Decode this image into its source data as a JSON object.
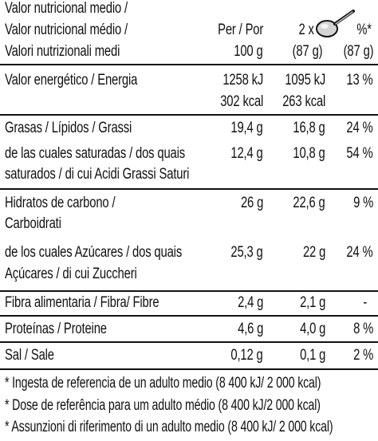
{
  "header": {
    "title_lines": [
      "Valor nutricional medio /",
      "Valor nutricional médio /",
      "Valori nutrizionali medi"
    ],
    "col_per_line1": "Per / Por",
    "col_per_line2": "100 g",
    "col_portion_line1": "2 x",
    "col_portion_line2": "(87 g)",
    "col_ri_line1": "%*",
    "col_ri_line2": "(87 g)",
    "portion_icon": "spoon-icon"
  },
  "rows": [
    {
      "label_lines": [
        "Valor energético / Energia"
      ],
      "per100": [
        "1258 kJ",
        "302 kcal"
      ],
      "portion": [
        "1095 kJ",
        "263 kcal"
      ],
      "ri": "13 %"
    },
    {
      "label_lines": [
        "Grasas / Lípidos / Grassi"
      ],
      "per100": [
        "19,4 g"
      ],
      "portion": [
        "16,8 g"
      ],
      "ri": "24 %"
    },
    {
      "label_lines": [
        "de las cuales saturadas / dos quais",
        "saturados /  di cui Acidi Grassi Saturi"
      ],
      "per100": [
        "12,4 g"
      ],
      "portion": [
        "10,8 g"
      ],
      "ri": "54 %"
    },
    {
      "label_lines": [
        "Hidratos de carbono /",
        "Carboidrati"
      ],
      "per100": [
        "26 g"
      ],
      "portion": [
        "22,6 g"
      ],
      "ri": "9 %"
    },
    {
      "label_lines": [
        "de los cuales Azúcares / dos quais",
        "Açúcares / di cui Zuccheri"
      ],
      "per100": [
        "25,3 g"
      ],
      "portion": [
        "22 g"
      ],
      "ri": "24 %"
    },
    {
      "label_lines": [
        "Fibra alimentaria / Fibra/ Fibre"
      ],
      "per100": [
        "2,4 g"
      ],
      "portion": [
        "2,1 g"
      ],
      "ri": "-"
    },
    {
      "label_lines": [
        "Proteínas / Proteine"
      ],
      "per100": [
        "4,6 g"
      ],
      "portion": [
        "4,0 g"
      ],
      "ri": "8 %"
    },
    {
      "label_lines": [
        "Sal / Sale"
      ],
      "per100": [
        "0,12 g"
      ],
      "portion": [
        "0,1 g"
      ],
      "ri": "2 %"
    }
  ],
  "footnotes": [
    "* Ingesta de referencia de un adulto medio (8 400 kJ/ 2 000 kcal)",
    "* Dose de referência para um adulto médio (8 400 kJ/2 000 kcal)",
    "* Assunzioni di riferimento di un adulto medio (8 400 kJ/ 2 000 kcal)"
  ],
  "colors": {
    "text": "#111111",
    "background": "#ffffff"
  }
}
